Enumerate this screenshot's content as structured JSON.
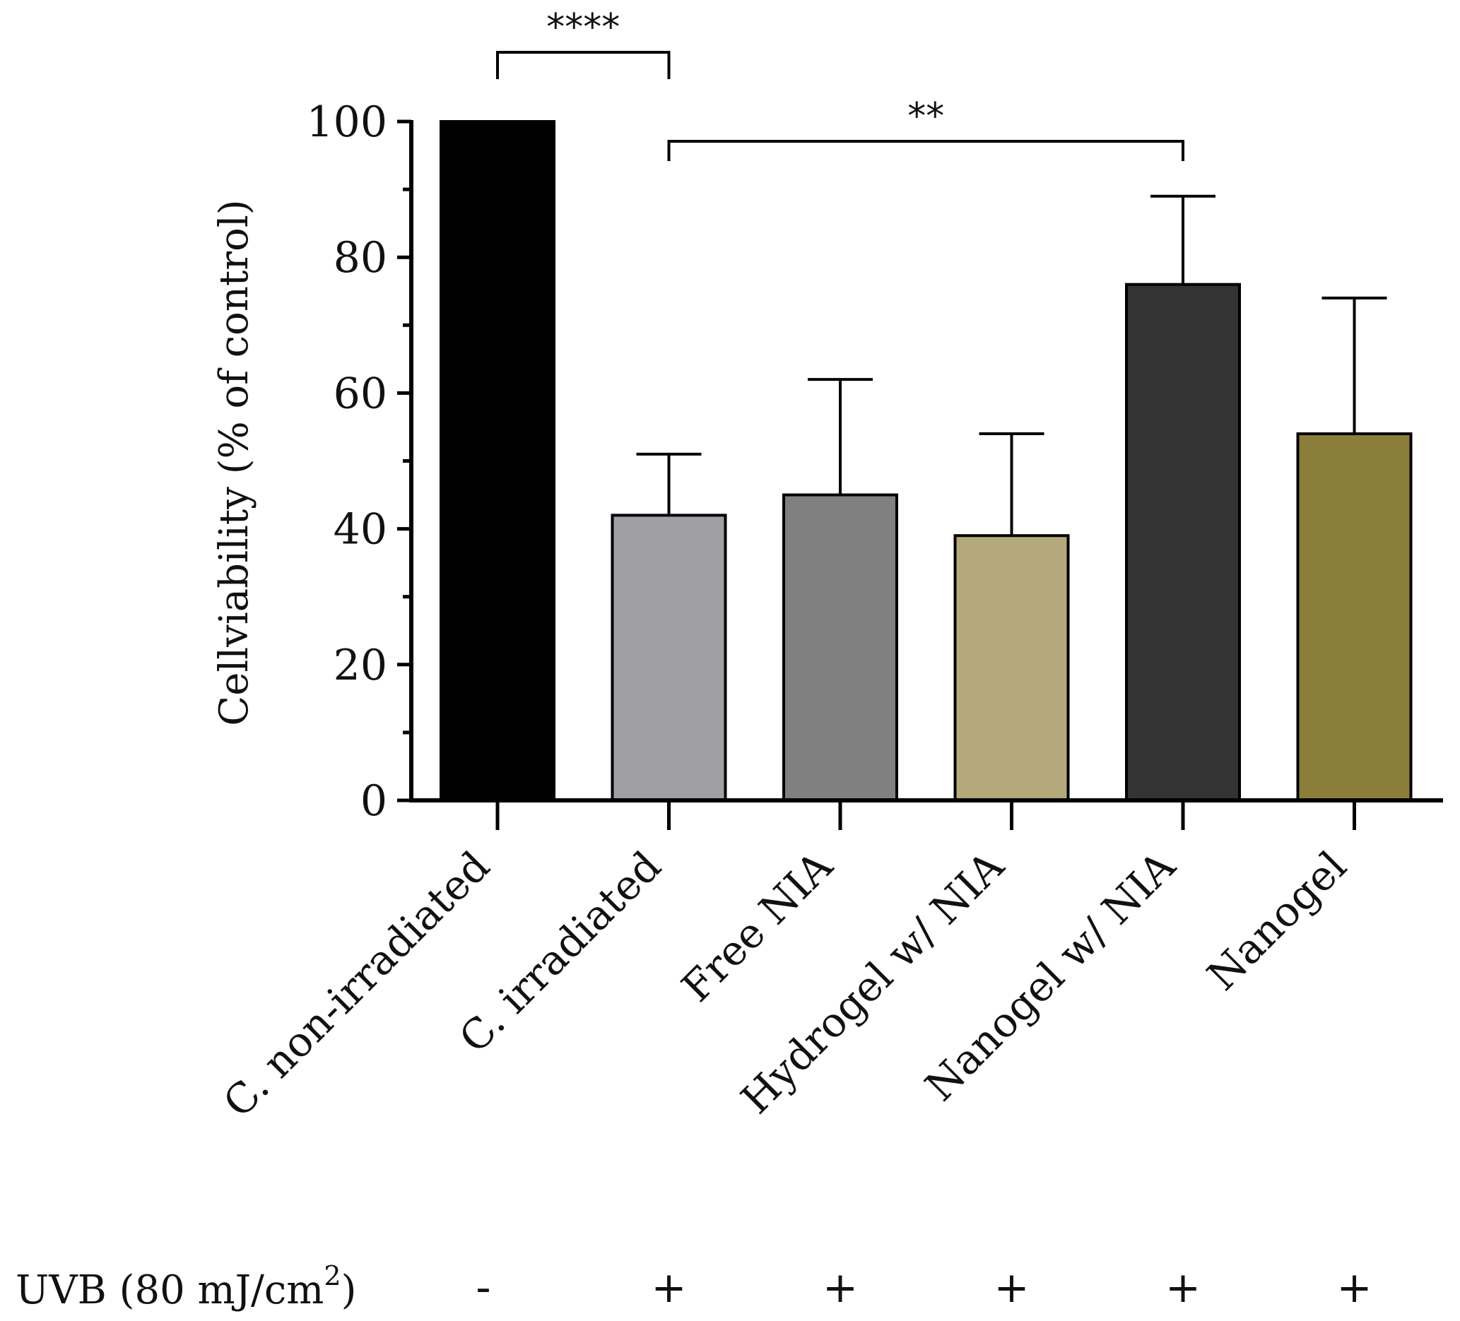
{
  "chart_data": {
    "type": "bar",
    "title": "",
    "xlabel": "",
    "ylabel": "Cellviability (% of control)",
    "ylim": [
      0,
      100
    ],
    "yticks": [
      0,
      20,
      40,
      60,
      80,
      100
    ],
    "categories": [
      "C. non-irradiated",
      "C. irradiated",
      "Free NIA",
      "Hydrogel w/ NIA",
      "Nanogel w/ NIA",
      "Nanogel"
    ],
    "values": [
      100,
      42,
      45,
      39,
      76,
      54
    ],
    "errors": [
      0,
      9,
      17,
      15,
      13,
      20
    ],
    "colors": [
      "#000000",
      "#a0a0a4",
      "#808080",
      "#b3a97a",
      "#333333",
      "#8b7d3a"
    ],
    "significance": [
      {
        "from": 0,
        "to": 1,
        "label": "****"
      },
      {
        "from": 1,
        "to": 4,
        "label": "**"
      }
    ],
    "treatment_row": {
      "label_prefix": "UVB (80 mJ/cm",
      "label_sup": "2",
      "label_suffix": ")",
      "marks": [
        "-",
        "+",
        "+",
        "+",
        "+",
        "+"
      ]
    }
  }
}
